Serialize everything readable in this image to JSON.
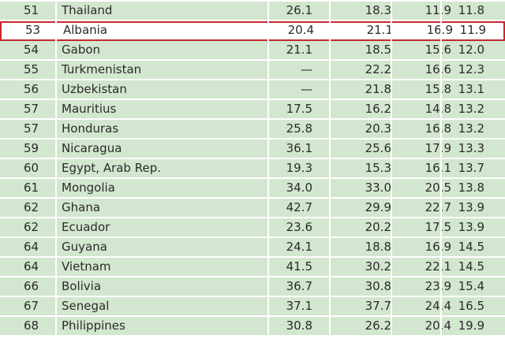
{
  "table": {
    "highlight_color": "#c8282e",
    "row_color": "#d3e6cf",
    "rows": [
      {
        "rank": "51",
        "country": "Thailand",
        "v1": "26.1",
        "v2": "18.3",
        "v3": "11.9",
        "v4": "11.8"
      },
      {
        "rank": "53",
        "country": "Albania",
        "v1": "20.4",
        "v2": "21.1",
        "v3": "16.9",
        "v4": "11.9"
      },
      {
        "rank": "54",
        "country": "Gabon",
        "v1": "21.1",
        "v2": "18.5",
        "v3": "15.6",
        "v4": "12.0"
      },
      {
        "rank": "55",
        "country": "Turkmenistan",
        "v1": "—",
        "v2": "22.2",
        "v3": "16.6",
        "v4": "12.3"
      },
      {
        "rank": "56",
        "country": "Uzbekistan",
        "v1": "—",
        "v2": "21.8",
        "v3": "15.8",
        "v4": "13.1"
      },
      {
        "rank": "57",
        "country": "Mauritius",
        "v1": "17.5",
        "v2": "16.2",
        "v3": "14.8",
        "v4": "13.2"
      },
      {
        "rank": "57",
        "country": "Honduras",
        "v1": "25.8",
        "v2": "20.3",
        "v3": "16.8",
        "v4": "13.2"
      },
      {
        "rank": "59",
        "country": "Nicaragua",
        "v1": "36.1",
        "v2": "25.6",
        "v3": "17.9",
        "v4": "13.3"
      },
      {
        "rank": "60",
        "country": "Egypt, Arab Rep.",
        "v1": "19.3",
        "v2": "15.3",
        "v3": "16.1",
        "v4": "13.7"
      },
      {
        "rank": "61",
        "country": "Mongolia",
        "v1": "34.0",
        "v2": "33.0",
        "v3": "20.5",
        "v4": "13.8"
      },
      {
        "rank": "62",
        "country": "Ghana",
        "v1": "42.7",
        "v2": "29.9",
        "v3": "22.7",
        "v4": "13.9"
      },
      {
        "rank": "62",
        "country": "Ecuador",
        "v1": "23.6",
        "v2": "20.2",
        "v3": "17.5",
        "v4": "13.9"
      },
      {
        "rank": "64",
        "country": "Guyana",
        "v1": "24.1",
        "v2": "18.8",
        "v3": "16.9",
        "v4": "14.5"
      },
      {
        "rank": "64",
        "country": "Vietnam",
        "v1": "41.5",
        "v2": "30.2",
        "v3": "22.1",
        "v4": "14.5"
      },
      {
        "rank": "66",
        "country": "Bolivia",
        "v1": "36.7",
        "v2": "30.8",
        "v3": "23.9",
        "v4": "15.4"
      },
      {
        "rank": "67",
        "country": "Senegal",
        "v1": "37.1",
        "v2": "37.7",
        "v3": "24.4",
        "v4": "16.5"
      },
      {
        "rank": "68",
        "country": "Philippines",
        "v1": "30.8",
        "v2": "26.2",
        "v3": "20.4",
        "v4": "19.9"
      }
    ]
  }
}
